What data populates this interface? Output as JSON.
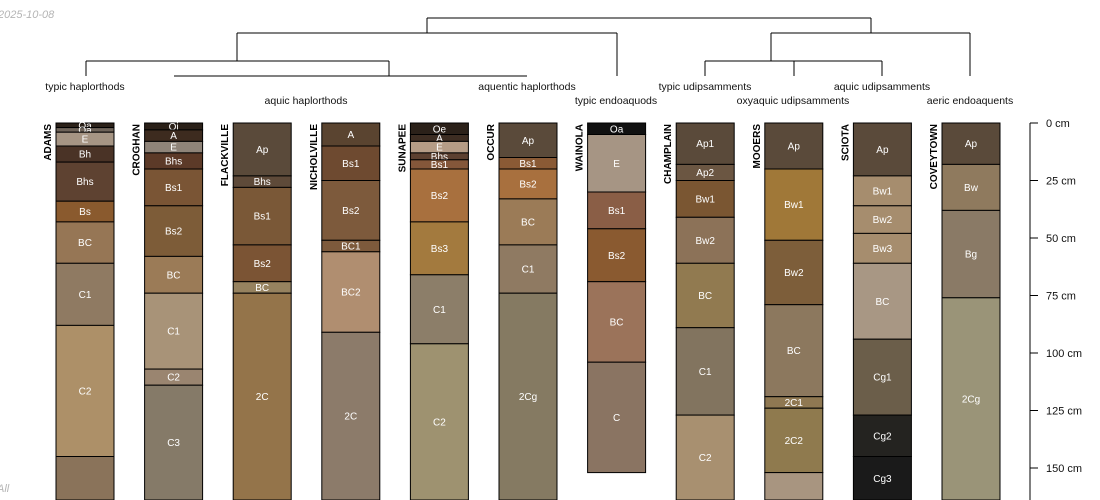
{
  "meta": {
    "date": "2025-10-08",
    "corner_note": "All"
  },
  "groups": [
    "typic haplorthods",
    "aquic haplorthods",
    "aquentic haplorthods",
    "typic endoaquods",
    "typic udipsamments",
    "oxyaquic udipsamments",
    "aquic udipsamments",
    "aeric endoaquents"
  ],
  "depth_axis": {
    "unit": "cm",
    "max_depth": 165,
    "ticks": [
      {
        "value": 0,
        "label": "0 cm"
      },
      {
        "value": 25,
        "label": "25 cm"
      },
      {
        "value": 50,
        "label": "50 cm"
      },
      {
        "value": 75,
        "label": "75 cm"
      },
      {
        "value": 100,
        "label": "100 cm"
      },
      {
        "value": 125,
        "label": "125 cm"
      },
      {
        "value": 150,
        "label": "150 cm"
      }
    ]
  },
  "profiles": [
    {
      "name": "ADAMS",
      "horizons": [
        {
          "name": "Oa",
          "top": 0,
          "bottom": 2,
          "color": "#2b2119"
        },
        {
          "name": "Oa",
          "top": 2,
          "bottom": 4,
          "color": "#6e6359"
        },
        {
          "name": "E",
          "top": 4,
          "bottom": 10,
          "color": "#a69584"
        },
        {
          "name": "Bh",
          "top": 10,
          "bottom": 17,
          "color": "#4a3326"
        },
        {
          "name": "Bhs",
          "top": 17,
          "bottom": 34,
          "color": "#5e4231"
        },
        {
          "name": "Bs",
          "top": 34,
          "bottom": 43,
          "color": "#8a5a2e"
        },
        {
          "name": "BC",
          "top": 43,
          "bottom": 61,
          "color": "#967655"
        },
        {
          "name": "C1",
          "top": 61,
          "bottom": 88,
          "color": "#8f7a62"
        },
        {
          "name": "C2",
          "top": 88,
          "bottom": 145,
          "color": "#ad9068"
        },
        {
          "name": "",
          "top": 145,
          "bottom": 165,
          "color": "#8a735a"
        }
      ]
    },
    {
      "name": "CROGHAN",
      "horizons": [
        {
          "name": "Oi",
          "top": 0,
          "bottom": 3,
          "color": "#2a2018"
        },
        {
          "name": "A",
          "top": 3,
          "bottom": 8,
          "color": "#3d2b1f"
        },
        {
          "name": "E",
          "top": 8,
          "bottom": 13,
          "color": "#8f8479"
        },
        {
          "name": "Bhs",
          "top": 13,
          "bottom": 20,
          "color": "#5c3a28"
        },
        {
          "name": "Bs1",
          "top": 20,
          "bottom": 36,
          "color": "#7a5535"
        },
        {
          "name": "Bs2",
          "top": 36,
          "bottom": 58,
          "color": "#7d5c38"
        },
        {
          "name": "BC",
          "top": 58,
          "bottom": 74,
          "color": "#9b7b57"
        },
        {
          "name": "C1",
          "top": 74,
          "bottom": 107,
          "color": "#a89378"
        },
        {
          "name": "C2",
          "top": 107,
          "bottom": 114,
          "color": "#9a8570"
        },
        {
          "name": "C3",
          "top": 114,
          "bottom": 165,
          "color": "#857a68"
        }
      ]
    },
    {
      "name": "FLACKVILLE",
      "horizons": [
        {
          "name": "Ap",
          "top": 0,
          "bottom": 23,
          "color": "#5a4a3a"
        },
        {
          "name": "Bhs",
          "top": 23,
          "bottom": 28,
          "color": "#5e4a39"
        },
        {
          "name": "Bs1",
          "top": 28,
          "bottom": 53,
          "color": "#7a5837"
        },
        {
          "name": "Bs2",
          "top": 53,
          "bottom": 69,
          "color": "#7b5434"
        },
        {
          "name": "BC",
          "top": 69,
          "bottom": 74,
          "color": "#96825f"
        },
        {
          "name": "2C",
          "top": 74,
          "bottom": 165,
          "color": "#94744a"
        }
      ]
    },
    {
      "name": "NICHOLVILLE",
      "horizons": [
        {
          "name": "A",
          "top": 0,
          "bottom": 10,
          "color": "#5a4430"
        },
        {
          "name": "Bs1",
          "top": 10,
          "bottom": 25,
          "color": "#6e4a30"
        },
        {
          "name": "Bs2",
          "top": 25,
          "bottom": 51,
          "color": "#7d5a3c"
        },
        {
          "name": "BC1",
          "top": 51,
          "bottom": 56,
          "color": "#7d5a3c"
        },
        {
          "name": "BC2",
          "top": 56,
          "bottom": 91,
          "color": "#b08e70"
        },
        {
          "name": "2C",
          "top": 91,
          "bottom": 165,
          "color": "#8c7b6a"
        }
      ]
    },
    {
      "name": "SUNAPEE",
      "horizons": [
        {
          "name": "Oe",
          "top": 0,
          "bottom": 5,
          "color": "#2b2119"
        },
        {
          "name": "A",
          "top": 5,
          "bottom": 8,
          "color": "#3d2d22"
        },
        {
          "name": "E",
          "top": 8,
          "bottom": 13,
          "color": "#b59c86"
        },
        {
          "name": "Bhs",
          "top": 13,
          "bottom": 16,
          "color": "#5c4030"
        },
        {
          "name": "Bs1",
          "top": 16,
          "bottom": 20,
          "color": "#84573a"
        },
        {
          "name": "Bs2",
          "top": 20,
          "bottom": 43,
          "color": "#a8703e"
        },
        {
          "name": "Bs3",
          "top": 43,
          "bottom": 66,
          "color": "#a37a3e"
        },
        {
          "name": "C1",
          "top": 66,
          "bottom": 96,
          "color": "#8c7e69"
        },
        {
          "name": "C2",
          "top": 96,
          "bottom": 165,
          "color": "#9e9270"
        }
      ]
    },
    {
      "name": "OCCUR",
      "horizons": [
        {
          "name": "Ap",
          "top": 0,
          "bottom": 15,
          "color": "#5a4a3a"
        },
        {
          "name": "Bs1",
          "top": 15,
          "bottom": 20,
          "color": "#8a5a35"
        },
        {
          "name": "Bs2",
          "top": 20,
          "bottom": 33,
          "color": "#a8703e"
        },
        {
          "name": "BC",
          "top": 33,
          "bottom": 53,
          "color": "#9b7b57"
        },
        {
          "name": "C1",
          "top": 53,
          "bottom": 74,
          "color": "#8f7a62"
        },
        {
          "name": "2Cg",
          "top": 74,
          "bottom": 165,
          "color": "#857a62"
        }
      ]
    },
    {
      "name": "WAINOLA",
      "horizons": [
        {
          "name": "Oa",
          "top": 0,
          "bottom": 5,
          "color": "#111111"
        },
        {
          "name": "E",
          "top": 5,
          "bottom": 30,
          "color": "#a69584"
        },
        {
          "name": "Bs1",
          "top": 30,
          "bottom": 46,
          "color": "#8a5e46"
        },
        {
          "name": "Bs2",
          "top": 46,
          "bottom": 69,
          "color": "#8a5a30"
        },
        {
          "name": "BC",
          "top": 69,
          "bottom": 104,
          "color": "#9b735a"
        },
        {
          "name": "C",
          "top": 104,
          "bottom": 152,
          "color": "#8a7462"
        }
      ]
    },
    {
      "name": "CHAMPLAIN",
      "horizons": [
        {
          "name": "Ap1",
          "top": 0,
          "bottom": 18,
          "color": "#5a4a3a"
        },
        {
          "name": "Ap2",
          "top": 18,
          "bottom": 25,
          "color": "#6b5642"
        },
        {
          "name": "Bw1",
          "top": 25,
          "bottom": 41,
          "color": "#7a5632"
        },
        {
          "name": "Bw2",
          "top": 41,
          "bottom": 61,
          "color": "#8c7258"
        },
        {
          "name": "BC",
          "top": 61,
          "bottom": 89,
          "color": "#917a50"
        },
        {
          "name": "C1",
          "top": 89,
          "bottom": 127,
          "color": "#82745f"
        },
        {
          "name": "C2",
          "top": 127,
          "bottom": 165,
          "color": "#a89070"
        }
      ]
    },
    {
      "name": "MOOERS",
      "horizons": [
        {
          "name": "Ap",
          "top": 0,
          "bottom": 20,
          "color": "#5a4a3a"
        },
        {
          "name": "Bw1",
          "top": 20,
          "bottom": 51,
          "color": "#a07838"
        },
        {
          "name": "Bw2",
          "top": 51,
          "bottom": 79,
          "color": "#7d5e3a"
        },
        {
          "name": "BC",
          "top": 79,
          "bottom": 119,
          "color": "#8c785e"
        },
        {
          "name": "2C1",
          "top": 119,
          "bottom": 124,
          "color": "#8f7852"
        },
        {
          "name": "2C2",
          "top": 124,
          "bottom": 152,
          "color": "#8f7a4e"
        },
        {
          "name": "",
          "top": 152,
          "bottom": 165,
          "color": "#a89580"
        }
      ]
    },
    {
      "name": "SCIOTA",
      "horizons": [
        {
          "name": "Ap",
          "top": 0,
          "bottom": 23,
          "color": "#5a4a3a"
        },
        {
          "name": "Bw1",
          "top": 23,
          "bottom": 36,
          "color": "#a68d6e"
        },
        {
          "name": "Bw2",
          "top": 36,
          "bottom": 48,
          "color": "#a68d6e"
        },
        {
          "name": "Bw3",
          "top": 48,
          "bottom": 61,
          "color": "#a68d6e"
        },
        {
          "name": "BC",
          "top": 61,
          "bottom": 94,
          "color": "#a89784"
        },
        {
          "name": "Cg1",
          "top": 94,
          "bottom": 127,
          "color": "#6b5e4a"
        },
        {
          "name": "Cg2",
          "top": 127,
          "bottom": 145,
          "color": "#242320"
        },
        {
          "name": "Cg3",
          "top": 145,
          "bottom": 165,
          "color": "#1a1a1a"
        }
      ]
    },
    {
      "name": "COVEYTOWN",
      "horizons": [
        {
          "name": "Ap",
          "top": 0,
          "bottom": 18,
          "color": "#5a4a3a"
        },
        {
          "name": "Bw",
          "top": 18,
          "bottom": 38,
          "color": "#8f7a5e"
        },
        {
          "name": "Bg",
          "top": 38,
          "bottom": 76,
          "color": "#8a7a66"
        },
        {
          "name": "2Cg",
          "top": 76,
          "bottom": 165,
          "color": "#9a9478"
        }
      ]
    }
  ]
}
